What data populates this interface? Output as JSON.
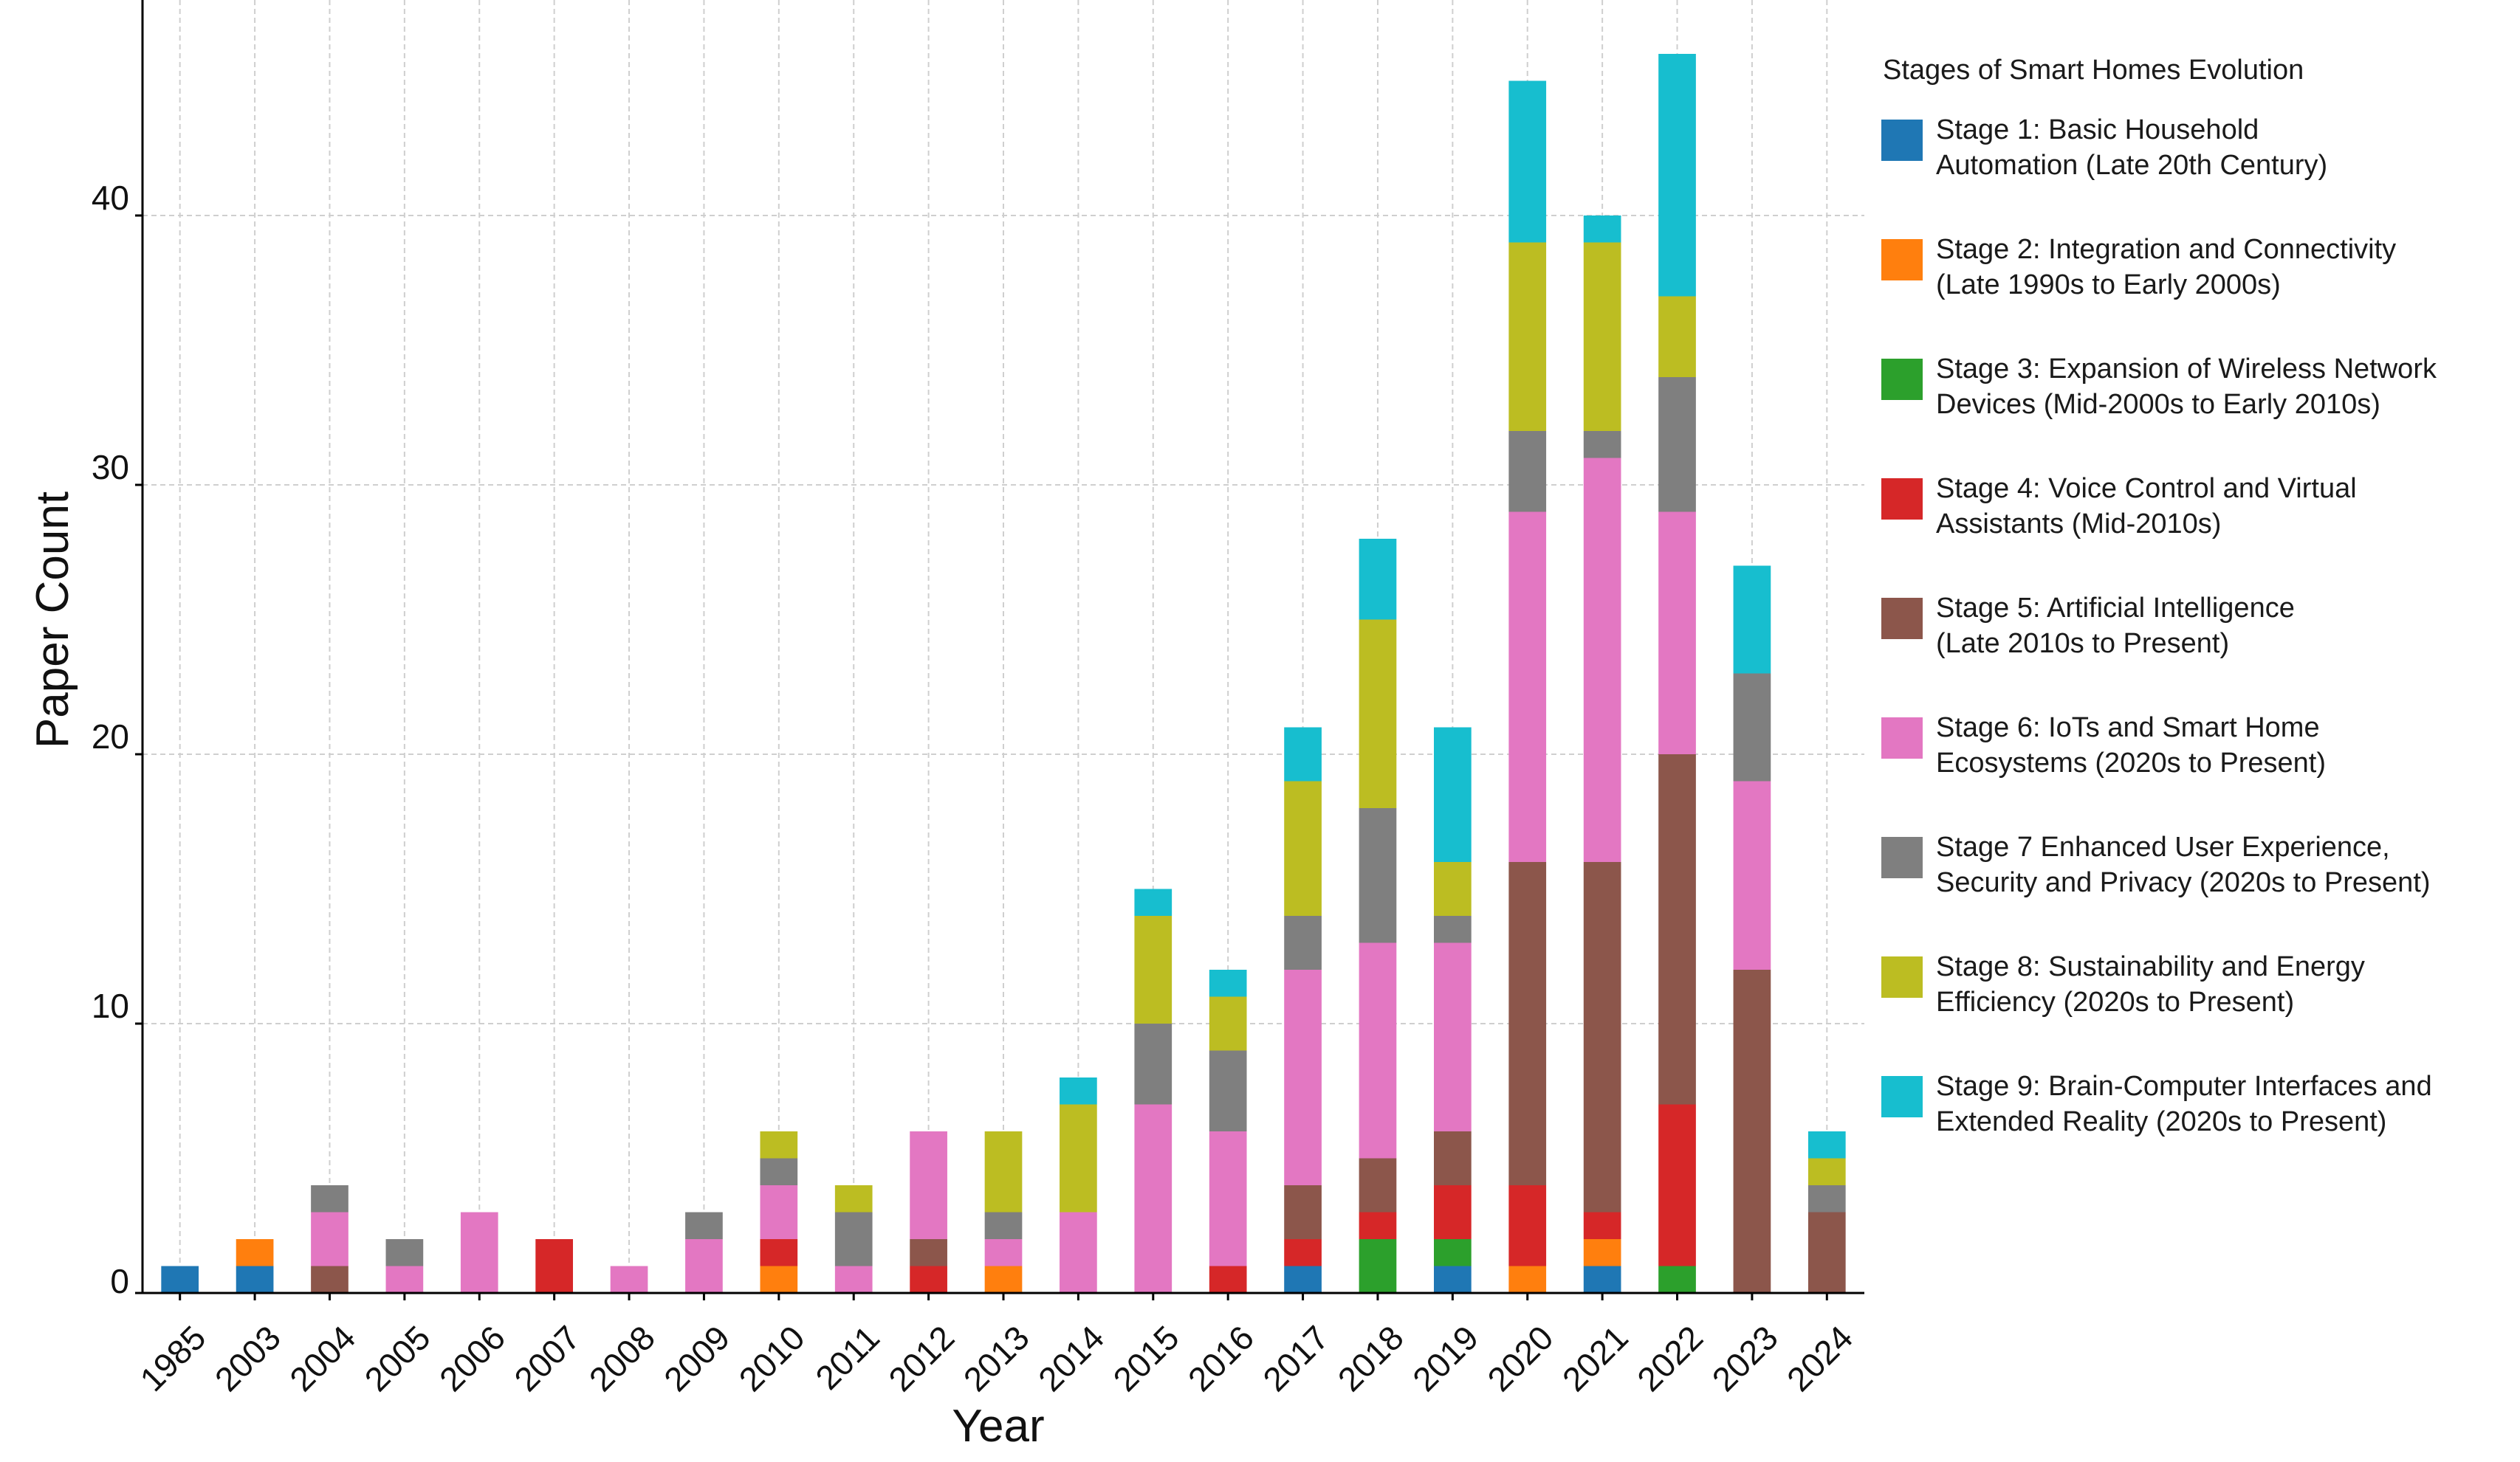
{
  "chart_data": {
    "type": "bar",
    "stacked": true,
    "title": "",
    "xlabel": "Year",
    "ylabel": "Paper Count",
    "ylim": [
      0,
      48
    ],
    "yticks": [
      0,
      10,
      20,
      30,
      40
    ],
    "grid": true,
    "legend_title": "Stages of Smart Homes Evolution",
    "legend_position": "right",
    "categories": [
      "1985",
      "2003",
      "2004",
      "2005",
      "2006",
      "2007",
      "2008",
      "2009",
      "2010",
      "2011",
      "2012",
      "2013",
      "2014",
      "2015",
      "2016",
      "2017",
      "2018",
      "2019",
      "2020",
      "2021",
      "2022",
      "2023",
      "2024"
    ],
    "series": [
      {
        "name": "Stage 1: Basic Household\nAutomation (Late 20th Century)",
        "color": "#1f77b4",
        "values": [
          1,
          1,
          0,
          0,
          0,
          0,
          0,
          0,
          0,
          0,
          0,
          0,
          0,
          0,
          0,
          1,
          0,
          1,
          0,
          1,
          0,
          0,
          0
        ]
      },
      {
        "name": "Stage 2: Integration and Connectivity\n(Late 1990s to Early 2000s)",
        "color": "#ff7f0e",
        "values": [
          0,
          1,
          0,
          0,
          0,
          0,
          0,
          0,
          1,
          0,
          0,
          1,
          0,
          0,
          0,
          0,
          0,
          0,
          1,
          1,
          0,
          0,
          0
        ]
      },
      {
        "name": "Stage 3: Expansion of Wireless Network\nDevices (Mid-2000s to Early 2010s)",
        "color": "#2ca02c",
        "values": [
          0,
          0,
          0,
          0,
          0,
          0,
          0,
          0,
          0,
          0,
          0,
          0,
          0,
          0,
          0,
          0,
          2,
          1,
          0,
          0,
          1,
          0,
          0
        ]
      },
      {
        "name": "Stage 4: Voice Control and Virtual\nAssistants (Mid-2010s)",
        "color": "#d62728",
        "values": [
          0,
          0,
          0,
          0,
          0,
          2,
          0,
          0,
          1,
          0,
          1,
          0,
          0,
          0,
          1,
          1,
          1,
          2,
          3,
          1,
          6,
          0,
          0
        ]
      },
      {
        "name": "Stage 5: Artificial Intelligence\n(Late 2010s to Present)",
        "color": "#8c564b",
        "values": [
          0,
          0,
          1,
          0,
          0,
          0,
          0,
          0,
          0,
          0,
          1,
          0,
          0,
          0,
          0,
          2,
          2,
          2,
          12,
          13,
          13,
          12,
          3
        ]
      },
      {
        "name": "Stage 6: IoTs and Smart Home\nEcosystems (2020s to Present)",
        "color": "#e377c2",
        "values": [
          0,
          0,
          2,
          1,
          3,
          0,
          1,
          2,
          2,
          1,
          4,
          1,
          3,
          7,
          5,
          8,
          8,
          7,
          13,
          15,
          9,
          7,
          0
        ]
      },
      {
        "name": "Stage 7 Enhanced User Experience,\nSecurity and Privacy (2020s to Present)",
        "color": "#7f7f7f",
        "values": [
          0,
          0,
          1,
          1,
          0,
          0,
          0,
          1,
          1,
          2,
          0,
          1,
          0,
          3,
          3,
          2,
          5,
          1,
          3,
          1,
          5,
          4,
          1
        ]
      },
      {
        "name": "Stage 8: Sustainability and Energy\nEfficiency (2020s to Present)",
        "color": "#bcbd22",
        "values": [
          0,
          0,
          0,
          0,
          0,
          0,
          0,
          0,
          1,
          1,
          0,
          3,
          4,
          4,
          2,
          5,
          7,
          2,
          7,
          7,
          3,
          0,
          1
        ]
      },
      {
        "name": "Stage 9: Brain-Computer Interfaces and\nExtended Reality (2020s to Present)",
        "color": "#17becf",
        "values": [
          0,
          0,
          0,
          0,
          0,
          0,
          0,
          0,
          0,
          0,
          0,
          0,
          1,
          1,
          1,
          2,
          3,
          5,
          6,
          1,
          9,
          4,
          1
        ]
      }
    ]
  }
}
